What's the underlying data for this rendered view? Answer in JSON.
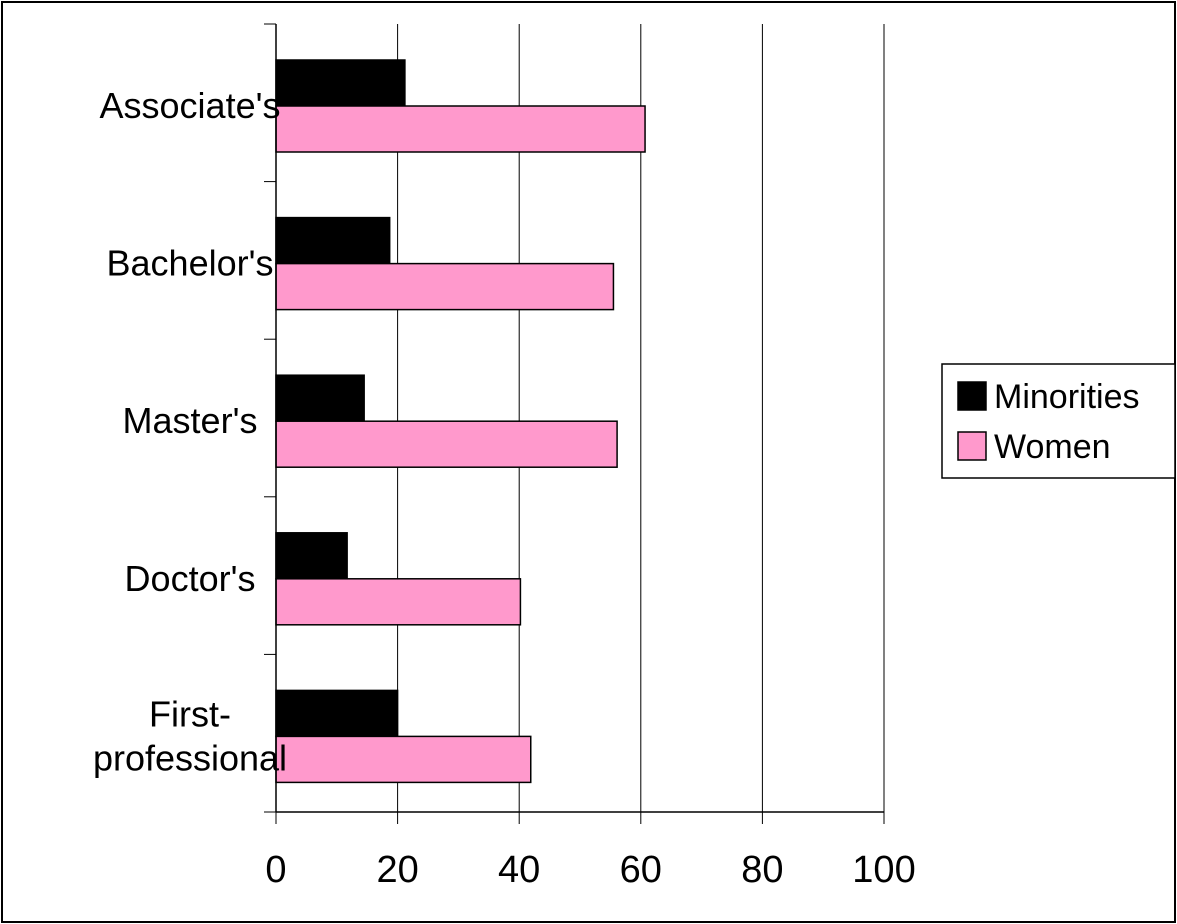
{
  "chart_data": {
    "type": "bar",
    "orientation": "horizontal",
    "categories": [
      "Associate's",
      "Bachelor's",
      "Master's",
      "Doctor's",
      "First-professional"
    ],
    "category_lines": [
      [
        "Associate's"
      ],
      [
        "Bachelor's"
      ],
      [
        "Master's"
      ],
      [
        "Doctor's"
      ],
      [
        "First-",
        "professional"
      ]
    ],
    "series": [
      {
        "name": "Minorities",
        "color": "#000000",
        "values": [
          21.2,
          18.7,
          14.5,
          11.7,
          20.0
        ]
      },
      {
        "name": "Women",
        "color": "#ff99cc",
        "values": [
          60.7,
          55.5,
          56.1,
          40.2,
          41.9
        ]
      }
    ],
    "xlim": [
      0,
      100
    ],
    "xticks": [
      0,
      20,
      40,
      60,
      80,
      100
    ],
    "title": "",
    "xlabel": "",
    "ylabel": "",
    "grid": "vertical",
    "legend": "right"
  }
}
